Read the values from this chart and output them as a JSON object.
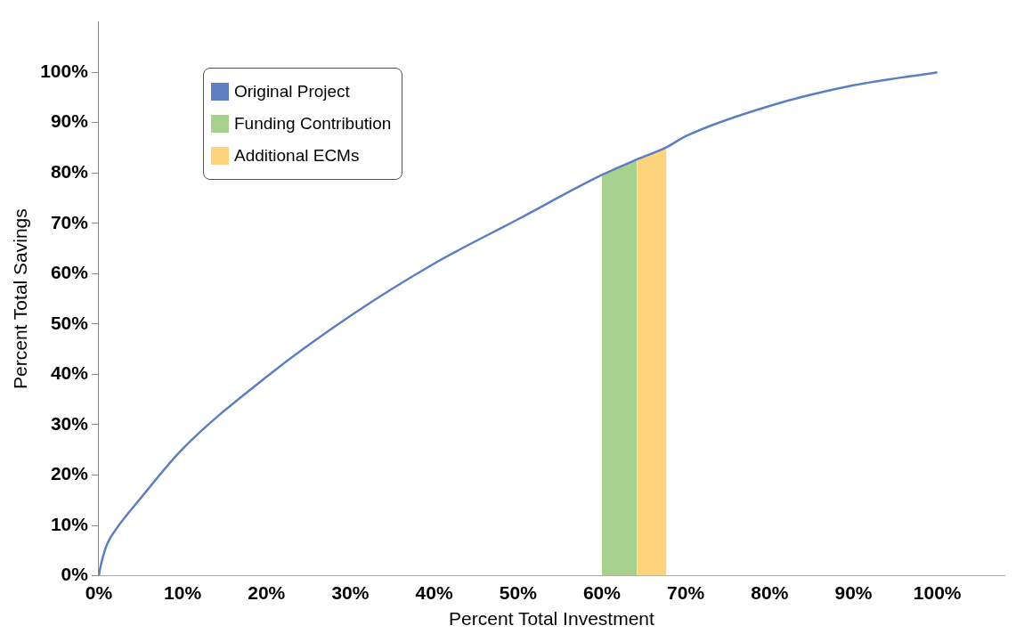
{
  "chart_data": {
    "type": "line",
    "xlabel": "Percent Total Investment",
    "ylabel": "Percent Total Savings",
    "xlim": [
      0,
      108
    ],
    "ylim": [
      0,
      110
    ],
    "xticks": [
      {
        "value": 0,
        "label": "0%"
      },
      {
        "value": 10,
        "label": "10%"
      },
      {
        "value": 20,
        "label": "20%"
      },
      {
        "value": 30,
        "label": "30%"
      },
      {
        "value": 40,
        "label": "40%"
      },
      {
        "value": 50,
        "label": "50%"
      },
      {
        "value": 60,
        "label": "60%"
      },
      {
        "value": 70,
        "label": "70%"
      },
      {
        "value": 80,
        "label": "80%"
      },
      {
        "value": 90,
        "label": "90%"
      },
      {
        "value": 100,
        "label": "100%"
      }
    ],
    "yticks": [
      {
        "value": 0,
        "label": "0%"
      },
      {
        "value": 10,
        "label": "10%"
      },
      {
        "value": 20,
        "label": "20%"
      },
      {
        "value": 30,
        "label": "30%"
      },
      {
        "value": 40,
        "label": "40%"
      },
      {
        "value": 50,
        "label": "50%"
      },
      {
        "value": 60,
        "label": "60%"
      },
      {
        "value": 70,
        "label": "70%"
      },
      {
        "value": 80,
        "label": "80%"
      },
      {
        "value": 90,
        "label": "90%"
      },
      {
        "value": 100,
        "label": "100%"
      }
    ],
    "grid": false,
    "legend": "top left",
    "marker": "none",
    "series": [
      {
        "name": "Original Project",
        "color": "#5b7fc0",
        "x": [
          0,
          0.3,
          1,
          2,
          5,
          10,
          20,
          30,
          40,
          50,
          60,
          64.2,
          67.7,
          70,
          80,
          90,
          100
        ],
        "values": [
          0,
          2.5,
          6.3,
          9.1,
          15.4,
          25.2,
          39.5,
          51.6,
          62,
          70.8,
          79.6,
          82.7,
          85.1,
          87.3,
          93.3,
          97.4,
          100
        ]
      },
      {
        "name": "Funding Contribution",
        "type": "area",
        "color": "#a9d18e",
        "x": [
          60,
          64.2
        ],
        "values": [
          79.6,
          82.7
        ]
      },
      {
        "name": "Additional ECMs",
        "type": "area",
        "color": "#fdd47c",
        "x": [
          64.2,
          67.7
        ],
        "values": [
          82.7,
          85.1
        ]
      }
    ]
  }
}
